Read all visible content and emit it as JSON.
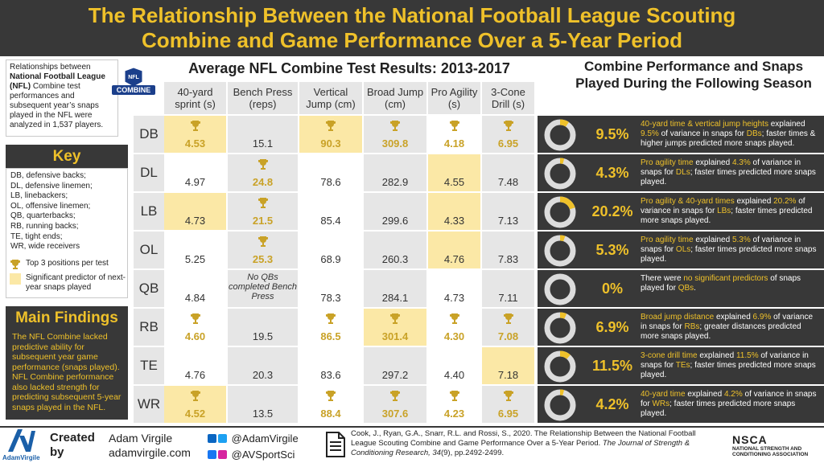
{
  "header": {
    "title_line1": "The Relationship Between the National Football League Scouting",
    "title_line2": "Combine and Game Performance Over a 5-Year Period"
  },
  "intro": {
    "pre": "Relationships between ",
    "bold": "National Football League (NFL)",
    "post": " Combine test performances and subsequent year’s snaps played in the NFL were analyzed in 1,537 players."
  },
  "logo_text": "COMBINE",
  "key": {
    "title": "Key",
    "entries": [
      "DB, defensive backs;",
      "DL, defensive linemen;",
      "LB, linebackers;",
      "OL, offensive linemen;",
      "QB, quarterbacks;",
      "RB, running backs;",
      "TE, tight ends;",
      "WR, wide receivers"
    ],
    "legend_top": "Top 3 positions per test",
    "legend_sig": "Significant predictor of next-year snaps played"
  },
  "main_findings": {
    "title": "Main Findings",
    "text": "The NFL Combine lacked predictive ability for subsequent year game performance (snaps played). NFL Combine performance also lacked strength for predicting subsequent 5-year snaps played in the NFL."
  },
  "table": {
    "title": "Average NFL Combine Test Results: 2013-2017",
    "columns": [
      "40-yard sprint (s)",
      "Bench Press (reps)",
      "Vertical Jump (cm)",
      "Broad Jump (cm)",
      "Pro Agility (s)",
      "3-Cone Drill (s)"
    ],
    "rows": [
      {
        "pos": "DB",
        "cells": [
          {
            "v": "4.53",
            "top": true,
            "hl": true
          },
          {
            "v": "15.1",
            "top": false,
            "hl": false
          },
          {
            "v": "90.3",
            "top": true,
            "hl": true
          },
          {
            "v": "309.8",
            "top": true,
            "hl": false
          },
          {
            "v": "4.18",
            "top": true,
            "hl": false
          },
          {
            "v": "6.95",
            "top": true,
            "hl": false
          }
        ]
      },
      {
        "pos": "DL",
        "cells": [
          {
            "v": "4.97",
            "top": false,
            "hl": false
          },
          {
            "v": "24.8",
            "top": true,
            "hl": false
          },
          {
            "v": "78.6",
            "top": false,
            "hl": false
          },
          {
            "v": "282.9",
            "top": false,
            "hl": false
          },
          {
            "v": "4.55",
            "top": false,
            "hl": true
          },
          {
            "v": "7.48",
            "top": false,
            "hl": false
          }
        ]
      },
      {
        "pos": "LB",
        "cells": [
          {
            "v": "4.73",
            "top": false,
            "hl": true
          },
          {
            "v": "21.5",
            "top": true,
            "hl": false
          },
          {
            "v": "85.4",
            "top": false,
            "hl": false
          },
          {
            "v": "299.6",
            "top": false,
            "hl": false
          },
          {
            "v": "4.33",
            "top": false,
            "hl": true
          },
          {
            "v": "7.13",
            "top": false,
            "hl": false
          }
        ]
      },
      {
        "pos": "OL",
        "cells": [
          {
            "v": "5.25",
            "top": false,
            "hl": false
          },
          {
            "v": "25.3",
            "top": true,
            "hl": false
          },
          {
            "v": "68.9",
            "top": false,
            "hl": false
          },
          {
            "v": "260.3",
            "top": false,
            "hl": false
          },
          {
            "v": "4.76",
            "top": false,
            "hl": true
          },
          {
            "v": "7.83",
            "top": false,
            "hl": false
          }
        ]
      },
      {
        "pos": "QB",
        "cells": [
          {
            "v": "4.84",
            "top": false,
            "hl": false
          },
          {
            "v": "",
            "note": "No QBs completed Bench Press",
            "top": false,
            "hl": false
          },
          {
            "v": "78.3",
            "top": false,
            "hl": false
          },
          {
            "v": "284.1",
            "top": false,
            "hl": false
          },
          {
            "v": "4.73",
            "top": false,
            "hl": false
          },
          {
            "v": "7.11",
            "top": false,
            "hl": false
          }
        ]
      },
      {
        "pos": "RB",
        "cells": [
          {
            "v": "4.60",
            "top": true,
            "hl": false
          },
          {
            "v": "19.5",
            "top": false,
            "hl": false
          },
          {
            "v": "86.5",
            "top": true,
            "hl": false
          },
          {
            "v": "301.4",
            "top": true,
            "hl": true
          },
          {
            "v": "4.30",
            "top": true,
            "hl": false
          },
          {
            "v": "7.08",
            "top": true,
            "hl": false
          }
        ]
      },
      {
        "pos": "TE",
        "cells": [
          {
            "v": "4.76",
            "top": false,
            "hl": false
          },
          {
            "v": "20.3",
            "top": false,
            "hl": false
          },
          {
            "v": "83.6",
            "top": false,
            "hl": false
          },
          {
            "v": "297.2",
            "top": false,
            "hl": false
          },
          {
            "v": "4.40",
            "top": false,
            "hl": false
          },
          {
            "v": "7.18",
            "top": false,
            "hl": true
          }
        ]
      },
      {
        "pos": "WR",
        "cells": [
          {
            "v": "4.52",
            "top": true,
            "hl": true
          },
          {
            "v": "13.5",
            "top": false,
            "hl": false
          },
          {
            "v": "88.4",
            "top": true,
            "hl": false
          },
          {
            "v": "307.6",
            "top": true,
            "hl": false
          },
          {
            "v": "4.23",
            "top": true,
            "hl": false
          },
          {
            "v": "6.95",
            "top": true,
            "hl": false
          }
        ]
      }
    ]
  },
  "snaps": {
    "title": "Combine Performance and Snaps Played During the Following Season",
    "rows": [
      {
        "pct_label": "9.5%",
        "pct": 9.5,
        "parts": [
          [
            "y",
            "40-yard time & vertical jump heights"
          ],
          [
            "w",
            " explained "
          ],
          [
            "y",
            "9.5%"
          ],
          [
            "w",
            " of variance in snaps for "
          ],
          [
            "y",
            "DBs"
          ],
          [
            "w",
            "; faster times & higher jumps predicted more snaps played."
          ]
        ]
      },
      {
        "pct_label": "4.3%",
        "pct": 4.3,
        "parts": [
          [
            "y",
            "Pro agility time"
          ],
          [
            "w",
            " explained "
          ],
          [
            "y",
            "4.3%"
          ],
          [
            "w",
            " of variance in snaps for "
          ],
          [
            "y",
            "DLs"
          ],
          [
            "w",
            "; faster times predicted more snaps played."
          ]
        ]
      },
      {
        "pct_label": "20.2%",
        "pct": 20.2,
        "parts": [
          [
            "y",
            "Pro agility & 40-yard times"
          ],
          [
            "w",
            " explained "
          ],
          [
            "y",
            "20.2%"
          ],
          [
            "w",
            " of variance in snaps for "
          ],
          [
            "y",
            "LBs"
          ],
          [
            "w",
            "; faster times predicted more snaps played."
          ]
        ]
      },
      {
        "pct_label": "5.3%",
        "pct": 5.3,
        "parts": [
          [
            "y",
            "Pro agility time"
          ],
          [
            "w",
            " explained "
          ],
          [
            "y",
            "5.3%"
          ],
          [
            "w",
            " of variance in snaps for "
          ],
          [
            "y",
            "OLs"
          ],
          [
            "w",
            "; faster times predicted more snaps played."
          ]
        ]
      },
      {
        "pct_label": "0%",
        "pct": 0,
        "parts": [
          [
            "w",
            "There were "
          ],
          [
            "y",
            "no significant predictors"
          ],
          [
            "w",
            " of snaps played for "
          ],
          [
            "y",
            "QBs"
          ],
          [
            "w",
            "."
          ]
        ]
      },
      {
        "pct_label": "6.9%",
        "pct": 6.9,
        "parts": [
          [
            "y",
            "Broad jump distance"
          ],
          [
            "w",
            " explained "
          ],
          [
            "y",
            "6.9%"
          ],
          [
            "w",
            " of variance in snaps for "
          ],
          [
            "y",
            "RBs"
          ],
          [
            "w",
            "; greater distances predicted more snaps played."
          ]
        ]
      },
      {
        "pct_label": "11.5%",
        "pct": 11.5,
        "parts": [
          [
            "y",
            "3-cone drill time"
          ],
          [
            "w",
            " explained "
          ],
          [
            "y",
            "11.5%"
          ],
          [
            "w",
            " of variance in snaps for "
          ],
          [
            "y",
            "TEs"
          ],
          [
            "w",
            "; faster times predicted more snaps played."
          ]
        ]
      },
      {
        "pct_label": "4.2%",
        "pct": 4.2,
        "parts": [
          [
            "y",
            "40-yard time"
          ],
          [
            "w",
            " explained "
          ],
          [
            "y",
            "4.2%"
          ],
          [
            "w",
            " of variance in snaps for "
          ],
          [
            "y",
            "WRs"
          ],
          [
            "w",
            "; faster times predicted more snaps played."
          ]
        ]
      }
    ]
  },
  "footer": {
    "logo_name": "AdamVirgile",
    "created": "Created",
    "by": "by",
    "author": "Adam Virgile",
    "site": "adamvirgile.com",
    "handle1": "@AdamVirgile",
    "handle2": "@AVSportSci",
    "citation_main": "Cook, J., Ryan, G.A., Snarr, R.L. and Rossi, S., 2020. The Relationship Between the National Football League Scouting Combine and Game Performance Over a 5-Year Period. ",
    "citation_journal": "The Journal of Strength & Conditioning Research, 34",
    "citation_tail": "(9), pp.2492-2499.",
    "nsca_1": "NSCA",
    "nsca_2": "NATIONAL STRENGTH AND",
    "nsca_3": "CONDITIONING ASSOCIATION"
  },
  "colors": {
    "dark": "#383838",
    "gold": "#efc12a",
    "highlight": "#fbe8a6",
    "cell": "#e6e6e6",
    "trophy": "#c9a227"
  }
}
